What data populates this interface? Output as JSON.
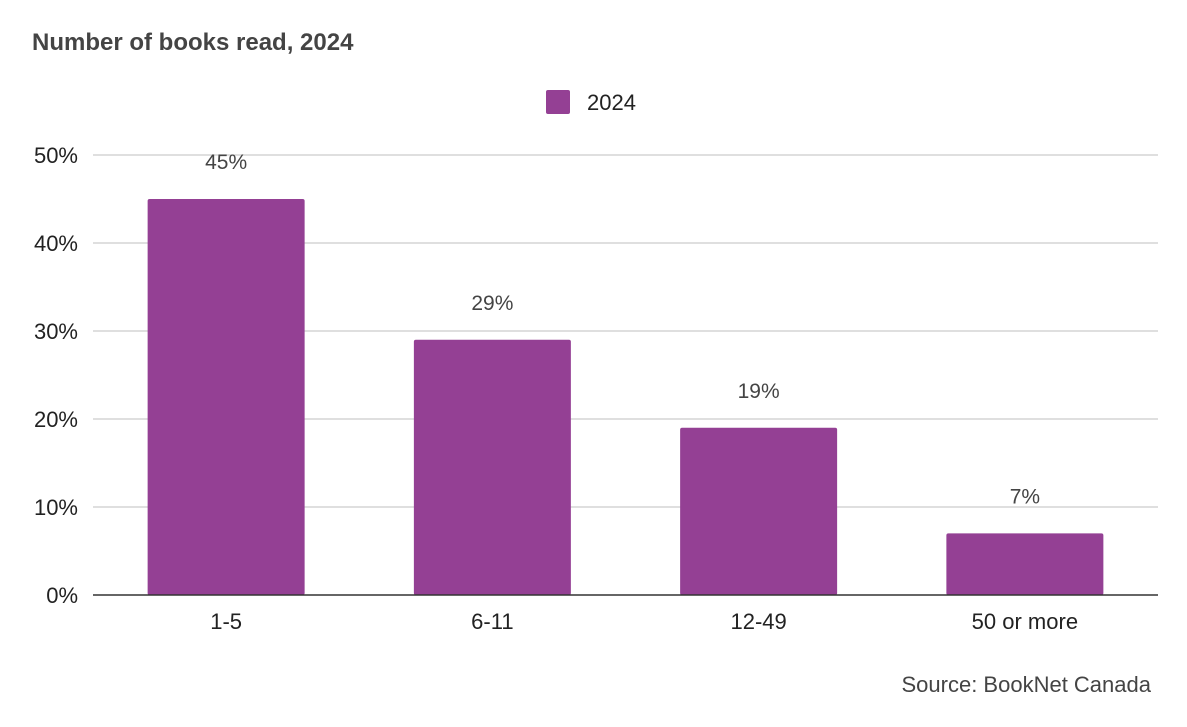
{
  "chart_data": {
    "type": "bar",
    "title": "Number of books read, 2024",
    "xlabel": "",
    "ylabel": "",
    "categories": [
      "1-5",
      "6-11",
      "12-49",
      "50 or more"
    ],
    "series": [
      {
        "name": "2024",
        "values": [
          45,
          29,
          19,
          7
        ],
        "data_labels": [
          "45%",
          "29%",
          "19%",
          "7%"
        ],
        "color": "#944094"
      }
    ],
    "ylim": [
      0,
      50
    ],
    "yticks": [
      0,
      10,
      20,
      30,
      40,
      50
    ],
    "ytick_labels": [
      "0%",
      "10%",
      "20%",
      "30%",
      "40%",
      "50%"
    ],
    "grid": true,
    "legend_position": "top-center",
    "source": "Source: BookNet Canada"
  },
  "colors": {
    "bar": "#944094",
    "grid": "#cccccc",
    "axis": "#333333",
    "text": "#222222",
    "title": "#444444"
  }
}
